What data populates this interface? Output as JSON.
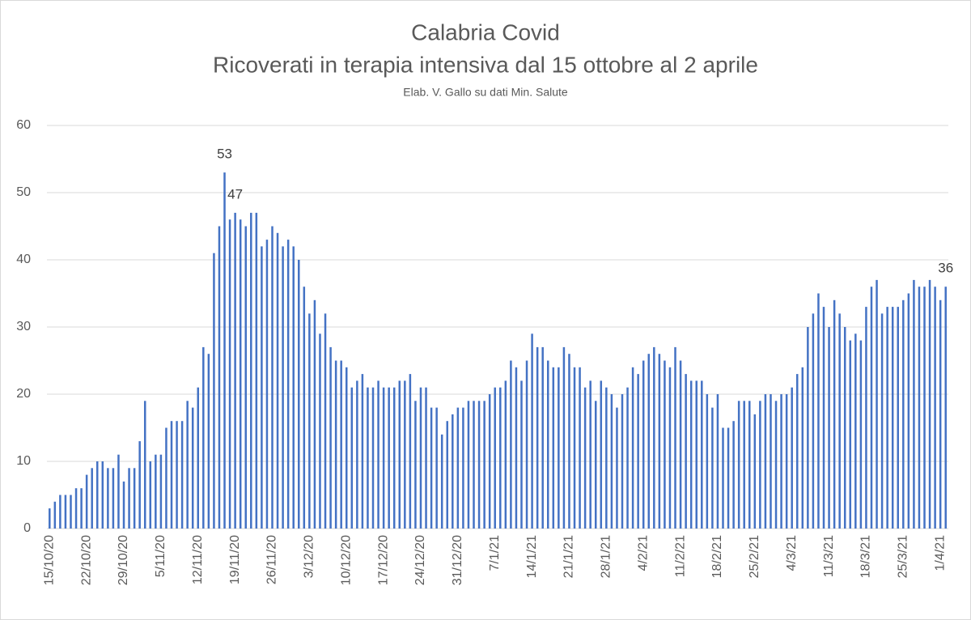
{
  "chart_data": {
    "type": "bar",
    "title": "Calabria Covid",
    "subtitle": "Ricoverati in terapia intensiva dal 15 ottobre al 2 aprile",
    "note": "Elab. V. Gallo su dati Min. Salute",
    "color": "#4472c4",
    "ylim": [
      0,
      60
    ],
    "yticks": [
      0,
      10,
      20,
      30,
      40,
      50,
      60
    ],
    "grid": true,
    "labeled_points": [
      33,
      35,
      169
    ],
    "categories": [
      "15/10/20",
      null,
      null,
      null,
      null,
      null,
      null,
      "22/10/20",
      null,
      null,
      null,
      null,
      null,
      null,
      "29/10/20",
      null,
      null,
      null,
      null,
      null,
      null,
      "5/11/20",
      null,
      null,
      null,
      null,
      null,
      null,
      "12/11/20",
      null,
      null,
      null,
      null,
      null,
      null,
      "19/11/20",
      null,
      null,
      null,
      null,
      null,
      null,
      "26/11/20",
      null,
      null,
      null,
      null,
      null,
      null,
      "3/12/20",
      null,
      null,
      null,
      null,
      null,
      null,
      "10/12/20",
      null,
      null,
      null,
      null,
      null,
      null,
      "17/12/20",
      null,
      null,
      null,
      null,
      null,
      null,
      "24/12/20",
      null,
      null,
      null,
      null,
      null,
      null,
      "31/12/20",
      null,
      null,
      null,
      null,
      null,
      null,
      "7/1/21",
      null,
      null,
      null,
      null,
      null,
      null,
      "14/1/21",
      null,
      null,
      null,
      null,
      null,
      null,
      "21/1/21",
      null,
      null,
      null,
      null,
      null,
      null,
      "28/1/21",
      null,
      null,
      null,
      null,
      null,
      null,
      "4/2/21",
      null,
      null,
      null,
      null,
      null,
      null,
      "11/2/21",
      null,
      null,
      null,
      null,
      null,
      null,
      "18/2/21",
      null,
      null,
      null,
      null,
      null,
      null,
      "25/2/21",
      null,
      null,
      null,
      null,
      null,
      null,
      "4/3/21",
      null,
      null,
      null,
      null,
      null,
      null,
      "11/3/21",
      null,
      null,
      null,
      null,
      null,
      null,
      "18/3/21",
      null,
      null,
      null,
      null,
      null,
      null,
      "25/3/21",
      null,
      null,
      null,
      null,
      null,
      null,
      "1/4/21",
      null
    ],
    "values": [
      3,
      4,
      5,
      5,
      5,
      6,
      6,
      8,
      9,
      10,
      10,
      9,
      9,
      11,
      7,
      9,
      9,
      13,
      19,
      10,
      11,
      11,
      15,
      16,
      16,
      16,
      19,
      18,
      21,
      27,
      26,
      41,
      45,
      53,
      46,
      47,
      46,
      45,
      47,
      47,
      42,
      43,
      45,
      44,
      42,
      43,
      42,
      40,
      36,
      32,
      34,
      29,
      32,
      27,
      25,
      25,
      24,
      21,
      22,
      23,
      21,
      21,
      22,
      21,
      21,
      21,
      22,
      22,
      23,
      19,
      21,
      21,
      18,
      18,
      14,
      16,
      17,
      18,
      18,
      19,
      19,
      19,
      19,
      20,
      21,
      21,
      22,
      25,
      24,
      22,
      25,
      29,
      27,
      27,
      25,
      24,
      24,
      27,
      26,
      24,
      24,
      21,
      22,
      19,
      22,
      21,
      20,
      18,
      20,
      21,
      24,
      23,
      25,
      26,
      27,
      26,
      25,
      24,
      27,
      25,
      23,
      22,
      22,
      22,
      20,
      18,
      20,
      15,
      15,
      16,
      19,
      19,
      19,
      17,
      19,
      20,
      20,
      19,
      20,
      20,
      21,
      23,
      24,
      30,
      32,
      35,
      33,
      30,
      34,
      32,
      30,
      28,
      29,
      28,
      33,
      36,
      37,
      32,
      33,
      33,
      33,
      34,
      35,
      37,
      36,
      36,
      37,
      36,
      34,
      36
    ]
  }
}
